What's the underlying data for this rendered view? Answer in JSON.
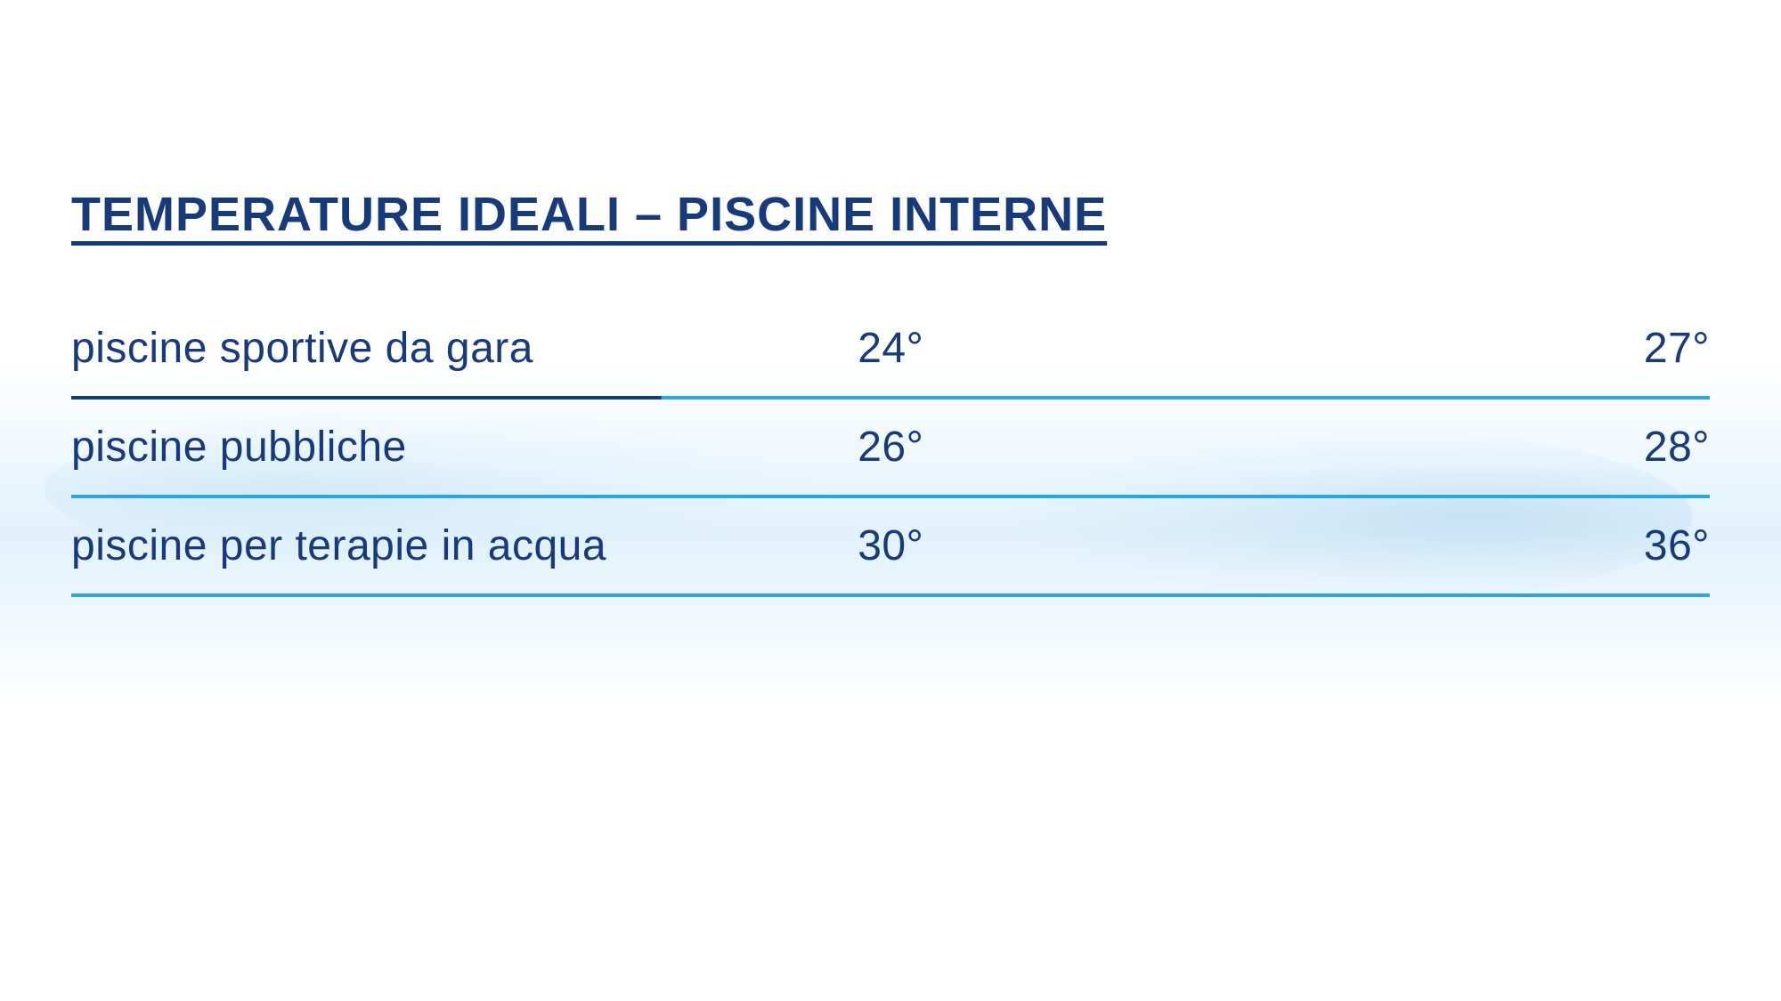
{
  "title": "TEMPERATURE IDEALI – PISCINE INTERNE",
  "colors": {
    "primary_text": "#163a7a",
    "divider_dark": "#163a7a",
    "divider_light": "#2ba7df",
    "background": "#ffffff"
  },
  "typography": {
    "title_fontsize": 54,
    "row_fontsize": 48,
    "font_family": "Arial Narrow",
    "font_stretch": "condensed"
  },
  "table": {
    "type": "table",
    "rows": [
      {
        "label": "piscine sportive da gara",
        "temp_min": "24°",
        "temp_max": "27°",
        "divider_style": "dark-line"
      },
      {
        "label": "piscine pubbliche",
        "temp_min": "26°",
        "temp_max": "28°",
        "divider_style": "light-line"
      },
      {
        "label": "piscine per terapie in acqua",
        "temp_min": "30°",
        "temp_max": "36°",
        "divider_style": "light-line"
      }
    ]
  }
}
